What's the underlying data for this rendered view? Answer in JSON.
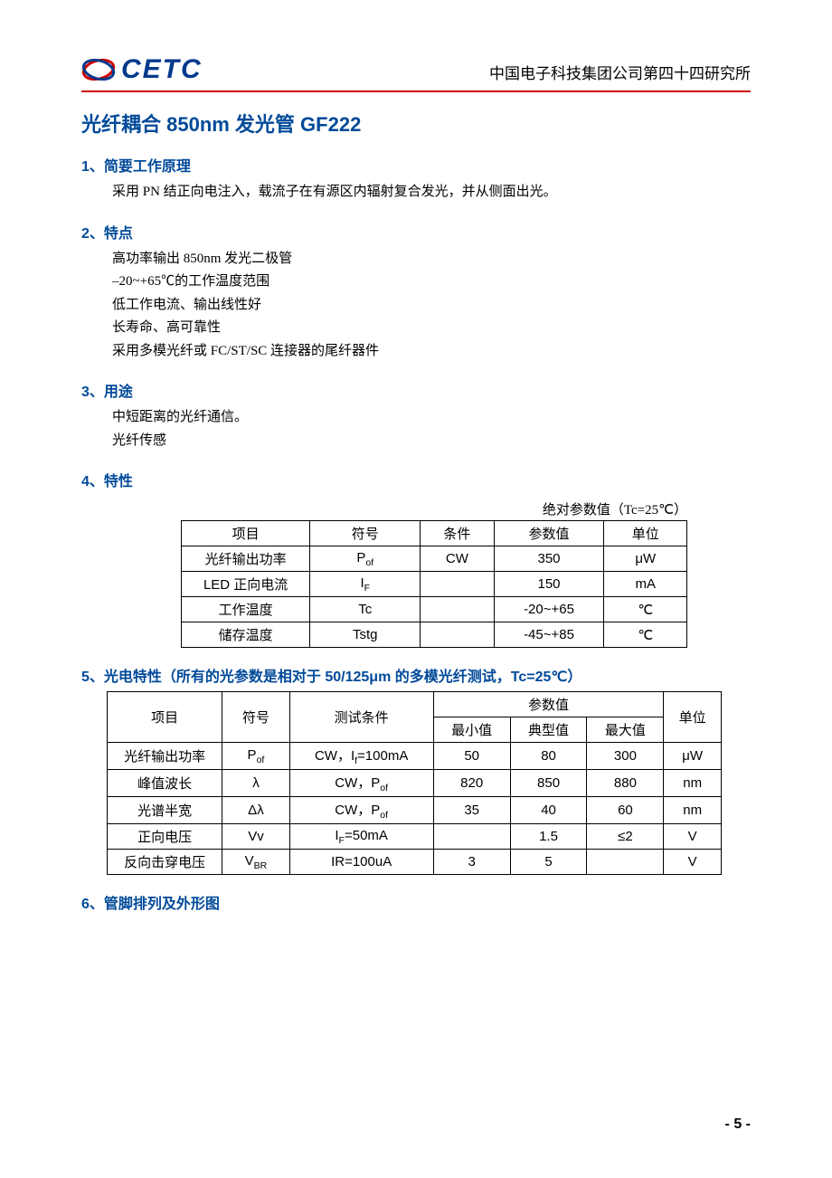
{
  "header": {
    "logo_text": "CETC",
    "org": "中国电子科技集团公司第四十四研究所",
    "logo_colors": {
      "blue": "#003a8c",
      "red": "#cc0000"
    }
  },
  "title": "光纤耦合 850nm 发光管 GF222",
  "colors": {
    "heading": "#004a99",
    "rule": "#cc0000",
    "text": "#000000",
    "table_border": "#000000",
    "background": "#ffffff"
  },
  "sections": {
    "s1": {
      "heading": "1、简要工作原理",
      "body": "采用 PN 结正向电注入，载流子在有源区内辐射复合发光，并从侧面出光。"
    },
    "s2": {
      "heading": "2、特点",
      "lines": [
        "高功率输出 850nm 发光二极管",
        "–20~+65℃的工作温度范围",
        "低工作电流、输出线性好",
        "长寿命、高可靠性",
        "采用多模光纤或 FC/ST/SC 连接器的尾纤器件"
      ]
    },
    "s3": {
      "heading": "3、用途",
      "lines": [
        "中短距离的光纤通信。",
        "光纤传感"
      ]
    },
    "s4": {
      "heading": "4、特性",
      "caption": "绝对参数值（Tc=25℃）",
      "table": {
        "columns": [
          "项目",
          "符号",
          "条件",
          "参数值",
          "单位"
        ],
        "rows": [
          [
            "光纤输出功率",
            "P<sub>of</sub>",
            "CW",
            "350",
            "μW"
          ],
          [
            "LED 正向电流",
            "I<sub>F</sub>",
            "",
            "150",
            "mA"
          ],
          [
            "工作温度",
            "Tc",
            "",
            "-20~+65",
            "℃"
          ],
          [
            "储存温度",
            "Tstg",
            "",
            "-45~+85",
            "℃"
          ]
        ]
      }
    },
    "s5": {
      "heading": "5、光电特性（所有的光参数是相对于 50/125μm 的多模光纤测试，Tc=25℃）",
      "table": {
        "header_row1": [
          "项目",
          "符号",
          "测试条件",
          "参数值",
          "单位"
        ],
        "header_row2": [
          "最小值",
          "典型值",
          "最大值"
        ],
        "rows": [
          [
            "光纤输出功率",
            "P<sub>of</sub>",
            "CW，I<sub>f</sub>=100mA",
            "50",
            "80",
            "300",
            "μW"
          ],
          [
            "峰值波长",
            "λ",
            "CW，P<sub>of</sub>",
            "820",
            "850",
            "880",
            "nm"
          ],
          [
            "光谱半宽",
            "Δλ",
            "CW，P<sub>of</sub>",
            "35",
            "40",
            "60",
            "nm"
          ],
          [
            "正向电压",
            "Vv",
            "I<sub>F</sub>=50mA",
            "",
            "1.5",
            "≤2",
            "V"
          ],
          [
            "反向击穿电压",
            "V<sub>BR</sub>",
            "IR=100uA",
            "3",
            "5",
            "",
            "V"
          ]
        ]
      }
    },
    "s6": {
      "heading": "6、管脚排列及外形图"
    }
  },
  "footer": {
    "page": "- 5 -"
  }
}
